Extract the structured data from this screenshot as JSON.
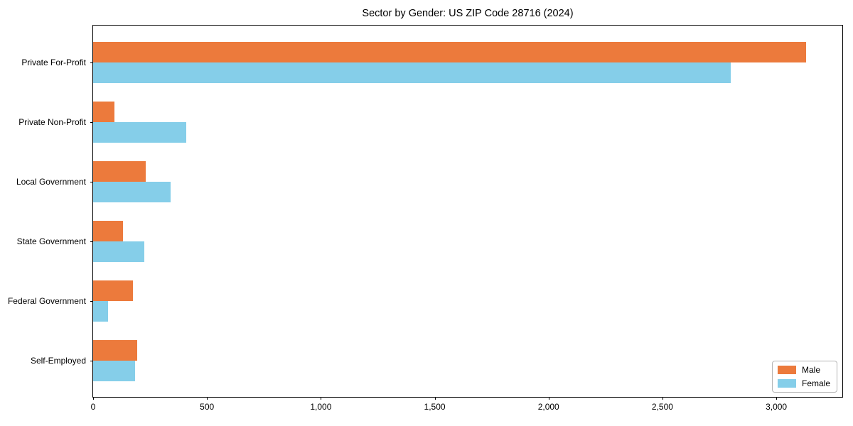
{
  "chart_data": {
    "type": "bar",
    "orientation": "horizontal",
    "title": "Sector by Gender: US ZIP Code 28716 (2024)",
    "categories": [
      "Private For-Profit",
      "Private Non-Profit",
      "Local Government",
      "State Government",
      "Federal Government",
      "Self-Employed"
    ],
    "series": [
      {
        "name": "Male",
        "color": "#ec7a3c",
        "values": [
          3130,
          95,
          230,
          130,
          175,
          195
        ]
      },
      {
        "name": "Female",
        "color": "#85cee9",
        "values": [
          2800,
          410,
          340,
          225,
          65,
          185
        ]
      }
    ],
    "xlabel": "",
    "ylabel": "",
    "xlim": [
      0,
      3290
    ],
    "xticks": [
      0,
      500,
      1000,
      1500,
      2000,
      2500,
      3000
    ],
    "xtick_labels": [
      "0",
      "500",
      "1,000",
      "1,500",
      "2,000",
      "2,500",
      "3,000"
    ],
    "grid": false,
    "legend_position": "lower right"
  }
}
